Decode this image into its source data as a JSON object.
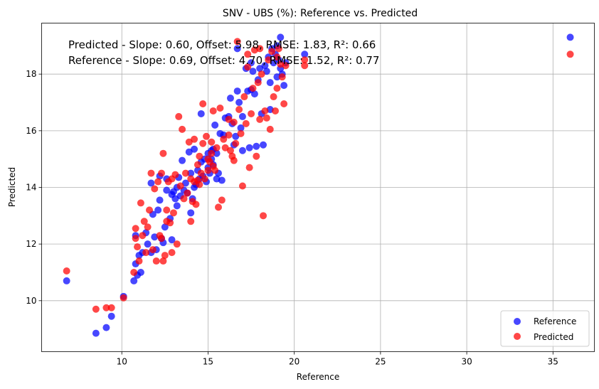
{
  "chart_data": {
    "type": "scatter",
    "title": "SNV - UBS (%): Reference vs. Predicted",
    "xlabel": "Reference",
    "ylabel": "Predicted",
    "xlim": [
      5.35,
      37.4
    ],
    "ylim": [
      8.2,
      19.8
    ],
    "xticks": [
      10,
      15,
      20,
      25,
      30,
      35
    ],
    "yticks": [
      10,
      12,
      14,
      16,
      18
    ],
    "grid": true,
    "legend_position": "lower-right",
    "annotations": [
      "Predicted - Slope: 0.60, Offset: 5.98, RMSE: 1.83, R²: 0.66",
      "Reference - Slope: 0.69, Offset: 4.70, RMSE: 1.52, R²: 0.77"
    ],
    "series": [
      {
        "name": "Reference",
        "color": "#0000ff",
        "points": [
          [
            6.8,
            10.7
          ],
          [
            8.5,
            8.85
          ],
          [
            9.1,
            9.05
          ],
          [
            9.4,
            9.45
          ],
          [
            10.1,
            10.15
          ],
          [
            10.7,
            10.7
          ],
          [
            10.8,
            11.3
          ],
          [
            10.9,
            10.9
          ],
          [
            11.0,
            11.6
          ],
          [
            11.1,
            11.0
          ],
          [
            10.8,
            12.3
          ],
          [
            11.2,
            11.7
          ],
          [
            11.4,
            12.4
          ],
          [
            11.5,
            12.0
          ],
          [
            11.7,
            11.7
          ],
          [
            11.7,
            14.15
          ],
          [
            11.8,
            13.05
          ],
          [
            11.9,
            12.25
          ],
          [
            12.0,
            11.8
          ],
          [
            12.1,
            13.2
          ],
          [
            12.2,
            13.55
          ],
          [
            12.2,
            14.4
          ],
          [
            12.3,
            12.2
          ],
          [
            12.4,
            12.05
          ],
          [
            12.5,
            12.6
          ],
          [
            12.6,
            13.9
          ],
          [
            12.6,
            14.3
          ],
          [
            12.8,
            12.9
          ],
          [
            12.9,
            12.15
          ],
          [
            12.9,
            13.75
          ],
          [
            13.1,
            13.6
          ],
          [
            13.2,
            14.0
          ],
          [
            13.2,
            13.35
          ],
          [
            13.3,
            14.35
          ],
          [
            13.4,
            13.7
          ],
          [
            13.5,
            14.95
          ],
          [
            13.6,
            13.9
          ],
          [
            13.7,
            14.15
          ],
          [
            13.8,
            13.8
          ],
          [
            13.9,
            15.25
          ],
          [
            14.0,
            13.1
          ],
          [
            14.0,
            14.5
          ],
          [
            14.1,
            13.6
          ],
          [
            14.2,
            14.0
          ],
          [
            14.2,
            15.35
          ],
          [
            14.3,
            14.1
          ],
          [
            14.4,
            14.6
          ],
          [
            14.5,
            14.3
          ],
          [
            14.6,
            14.9
          ],
          [
            14.6,
            16.6
          ],
          [
            14.7,
            14.4
          ],
          [
            14.8,
            15.0
          ],
          [
            14.9,
            14.2
          ],
          [
            15.0,
            14.7
          ],
          [
            15.0,
            15.2
          ],
          [
            15.1,
            14.5
          ],
          [
            15.2,
            15.0
          ],
          [
            15.2,
            15.3
          ],
          [
            15.3,
            14.8
          ],
          [
            15.3,
            15.35
          ],
          [
            15.4,
            16.2
          ],
          [
            15.5,
            14.3
          ],
          [
            15.5,
            15.2
          ],
          [
            15.6,
            14.5
          ],
          [
            15.7,
            15.9
          ],
          [
            15.8,
            14.25
          ],
          [
            15.9,
            15.85
          ],
          [
            16.0,
            16.45
          ],
          [
            16.2,
            16.5
          ],
          [
            16.3,
            17.15
          ],
          [
            16.4,
            16.25
          ],
          [
            16.5,
            15.5
          ],
          [
            16.6,
            15.8
          ],
          [
            16.7,
            18.9
          ],
          [
            16.8,
            17.0
          ],
          [
            16.9,
            16.1
          ],
          [
            17.0,
            15.3
          ],
          [
            17.0,
            16.5
          ],
          [
            17.2,
            18.2
          ],
          [
            17.3,
            17.4
          ],
          [
            17.4,
            15.4
          ],
          [
            17.5,
            17.45
          ],
          [
            17.6,
            18.1
          ],
          [
            17.7,
            17.3
          ],
          [
            17.8,
            15.45
          ],
          [
            17.9,
            17.8
          ],
          [
            18.0,
            18.2
          ],
          [
            18.1,
            16.6
          ],
          [
            18.2,
            15.5
          ],
          [
            18.3,
            18.3
          ],
          [
            18.4,
            18.1
          ],
          [
            18.5,
            18.6
          ],
          [
            18.6,
            16.75
          ],
          [
            18.7,
            18.9
          ],
          [
            18.8,
            18.4
          ],
          [
            18.9,
            18.7
          ],
          [
            19.0,
            19.0
          ],
          [
            19.1,
            18.5
          ],
          [
            19.2,
            19.3
          ],
          [
            19.3,
            18.0
          ],
          [
            19.4,
            17.6
          ],
          [
            19.5,
            18.4
          ],
          [
            20.6,
            18.7
          ],
          [
            36.0,
            19.3
          ],
          [
            19.0,
            17.9
          ],
          [
            16.7,
            17.4
          ],
          [
            17.5,
            18.4
          ],
          [
            18.6,
            17.7
          ],
          [
            19.2,
            18.2
          ],
          [
            13.0,
            13.85
          ]
        ]
      },
      {
        "name": "Predicted",
        "color": "#ff0000",
        "points": [
          [
            6.8,
            11.05
          ],
          [
            8.5,
            9.7
          ],
          [
            9.1,
            9.75
          ],
          [
            9.4,
            9.75
          ],
          [
            10.1,
            10.1
          ],
          [
            10.7,
            11.0
          ],
          [
            10.8,
            12.2
          ],
          [
            10.8,
            12.55
          ],
          [
            10.9,
            11.9
          ],
          [
            11.0,
            11.4
          ],
          [
            11.1,
            13.45
          ],
          [
            11.2,
            12.3
          ],
          [
            11.3,
            12.8
          ],
          [
            11.4,
            11.7
          ],
          [
            11.5,
            12.6
          ],
          [
            11.6,
            13.2
          ],
          [
            11.7,
            14.5
          ],
          [
            11.8,
            11.8
          ],
          [
            11.9,
            13.95
          ],
          [
            12.0,
            11.4
          ],
          [
            12.1,
            14.2
          ],
          [
            12.2,
            12.3
          ],
          [
            12.3,
            12.2
          ],
          [
            12.3,
            14.5
          ],
          [
            12.4,
            11.4
          ],
          [
            12.4,
            15.2
          ],
          [
            12.5,
            11.6
          ],
          [
            12.6,
            12.8
          ],
          [
            12.6,
            13.2
          ],
          [
            12.7,
            14.2
          ],
          [
            12.8,
            12.75
          ],
          [
            12.9,
            11.7
          ],
          [
            12.9,
            14.3
          ],
          [
            13.0,
            13.1
          ],
          [
            13.1,
            14.45
          ],
          [
            13.2,
            12.0
          ],
          [
            13.3,
            16.5
          ],
          [
            13.4,
            14.05
          ],
          [
            13.5,
            16.05
          ],
          [
            13.6,
            13.6
          ],
          [
            13.7,
            14.5
          ],
          [
            13.8,
            13.8
          ],
          [
            13.9,
            15.6
          ],
          [
            14.0,
            12.8
          ],
          [
            14.0,
            14.3
          ],
          [
            14.1,
            13.5
          ],
          [
            14.2,
            14.2
          ],
          [
            14.2,
            15.7
          ],
          [
            14.3,
            13.4
          ],
          [
            14.4,
            14.8
          ],
          [
            14.5,
            14.1
          ],
          [
            14.5,
            15.1
          ],
          [
            14.6,
            14.5
          ],
          [
            14.7,
            15.55
          ],
          [
            14.7,
            16.95
          ],
          [
            14.8,
            14.3
          ],
          [
            14.9,
            15.8
          ],
          [
            15.0,
            14.6
          ],
          [
            15.0,
            15.0
          ],
          [
            15.1,
            14.9
          ],
          [
            15.2,
            15.2
          ],
          [
            15.3,
            14.75
          ],
          [
            15.3,
            16.7
          ],
          [
            15.4,
            14.6
          ],
          [
            15.5,
            15.4
          ],
          [
            15.6,
            13.3
          ],
          [
            15.7,
            16.8
          ],
          [
            15.8,
            13.55
          ],
          [
            15.9,
            15.7
          ],
          [
            16.0,
            15.4
          ],
          [
            16.2,
            16.4
          ],
          [
            16.3,
            15.3
          ],
          [
            16.4,
            15.1
          ],
          [
            16.5,
            14.95
          ],
          [
            16.5,
            16.3
          ],
          [
            16.6,
            15.55
          ],
          [
            16.7,
            19.15
          ],
          [
            16.8,
            16.75
          ],
          [
            16.9,
            15.9
          ],
          [
            17.0,
            14.05
          ],
          [
            17.1,
            17.2
          ],
          [
            17.2,
            16.25
          ],
          [
            17.3,
            18.25
          ],
          [
            17.4,
            14.7
          ],
          [
            17.5,
            16.6
          ],
          [
            17.6,
            17.5
          ],
          [
            17.7,
            18.85
          ],
          [
            17.8,
            15.1
          ],
          [
            17.9,
            17.7
          ],
          [
            18.0,
            16.4
          ],
          [
            18.1,
            18.0
          ],
          [
            18.2,
            13.0
          ],
          [
            18.3,
            16.7
          ],
          [
            18.4,
            16.45
          ],
          [
            18.5,
            18.5
          ],
          [
            18.6,
            16.05
          ],
          [
            18.7,
            18.8
          ],
          [
            18.8,
            17.2
          ],
          [
            18.9,
            16.7
          ],
          [
            19.0,
            17.5
          ],
          [
            19.1,
            18.9
          ],
          [
            19.2,
            18.35
          ],
          [
            19.3,
            17.9
          ],
          [
            19.4,
            16.95
          ],
          [
            19.5,
            18.3
          ],
          [
            20.6,
            18.3
          ],
          [
            20.6,
            18.5
          ],
          [
            36.0,
            18.7
          ],
          [
            17.3,
            18.7
          ],
          [
            18.0,
            18.9
          ],
          [
            19.0,
            18.6
          ],
          [
            16.2,
            15.85
          ],
          [
            15.2,
            15.6
          ],
          [
            14.4,
            14.25
          ]
        ]
      }
    ]
  }
}
